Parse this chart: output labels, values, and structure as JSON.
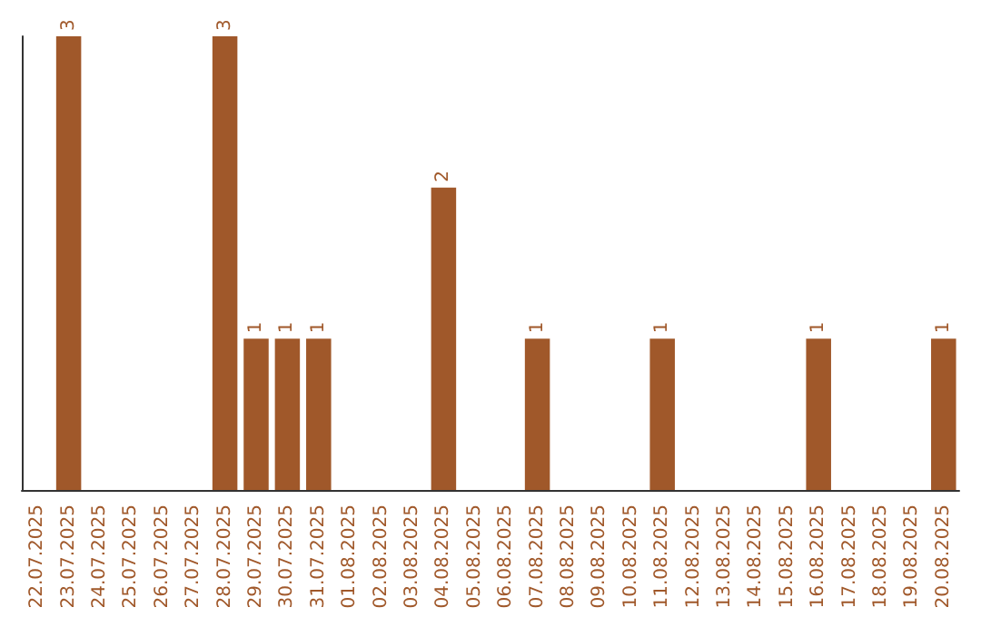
{
  "chart_data": {
    "type": "bar",
    "categories": [
      "22.07.2025",
      "23.07.2025",
      "24.07.2025",
      "25.07.2025",
      "26.07.2025",
      "27.07.2025",
      "28.07.2025",
      "29.07.2025",
      "30.07.2025",
      "31.07.2025",
      "01.08.2025",
      "02.08.2025",
      "03.08.2025",
      "04.08.2025",
      "05.08.2025",
      "06.08.2025",
      "07.08.2025",
      "08.08.2025",
      "09.08.2025",
      "10.08.2025",
      "11.08.2025",
      "12.08.2025",
      "13.08.2025",
      "14.08.2025",
      "15.08.2025",
      "16.08.2025",
      "17.08.2025",
      "18.08.2025",
      "19.08.2025",
      "20.08.2025"
    ],
    "values": [
      0,
      3,
      0,
      0,
      0,
      0,
      3,
      1,
      1,
      1,
      0,
      0,
      0,
      2,
      0,
      0,
      1,
      0,
      0,
      0,
      1,
      0,
      0,
      0,
      0,
      1,
      0,
      0,
      0,
      1
    ],
    "value_labels": [
      null,
      "3",
      null,
      null,
      null,
      null,
      "3",
      "1",
      "1",
      "1",
      null,
      null,
      null,
      "2",
      null,
      null,
      "1",
      null,
      null,
      null,
      "1",
      null,
      null,
      null,
      null,
      "1",
      null,
      null,
      null,
      "1"
    ],
    "color": "#a0582a",
    "grid": false,
    "tick_labels": "x"
  }
}
